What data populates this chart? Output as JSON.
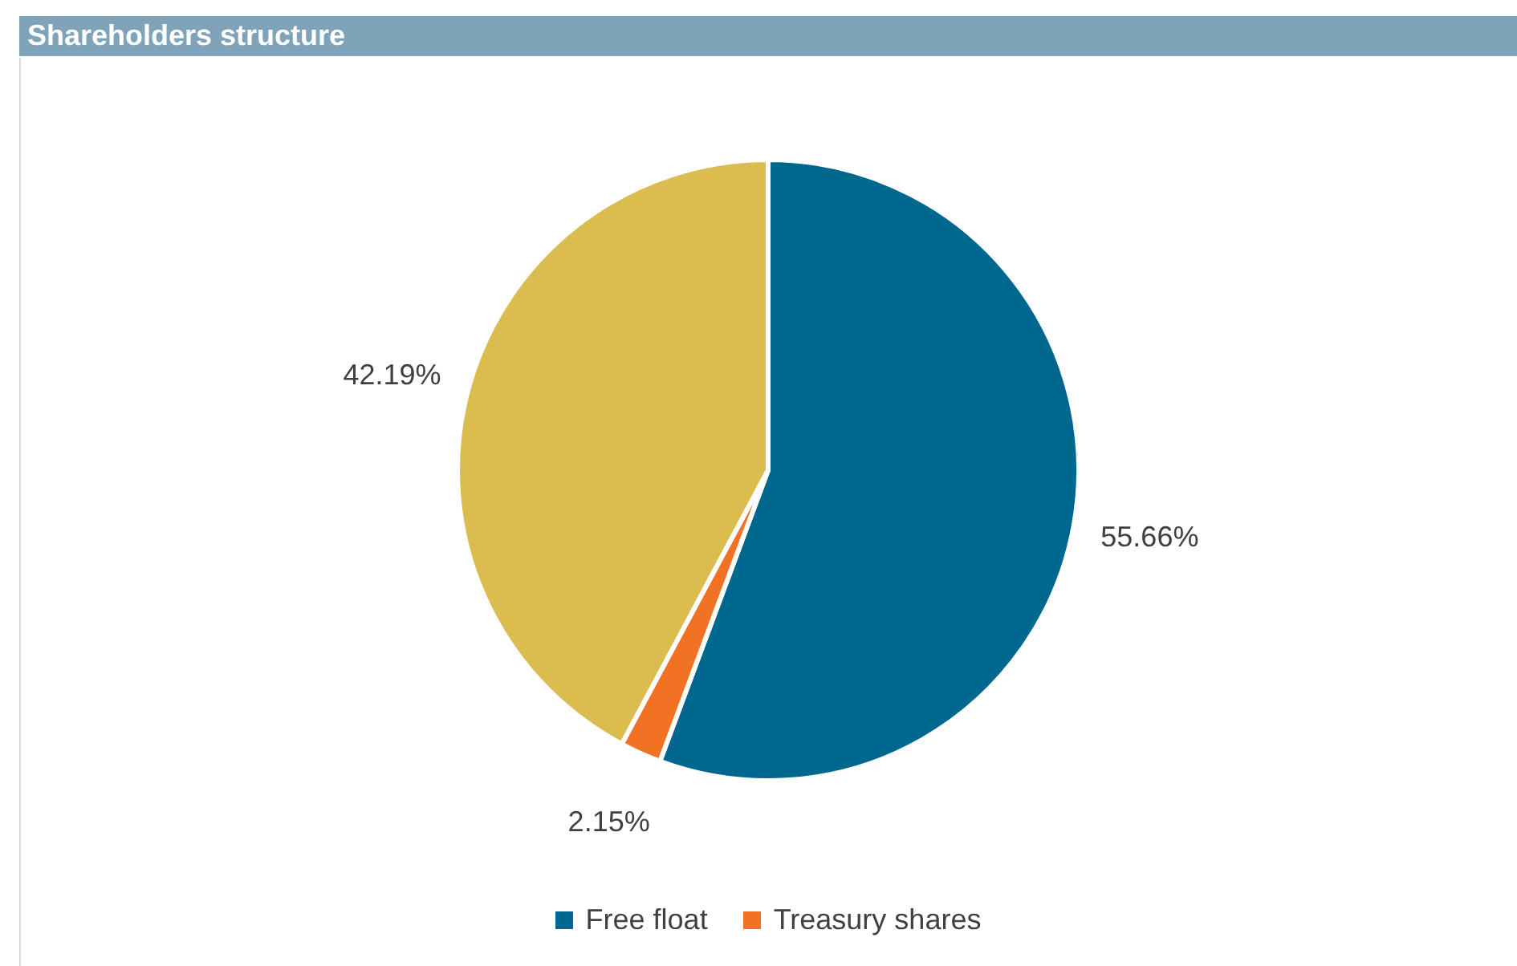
{
  "chart_data": {
    "type": "pie",
    "title": "Shareholders structure",
    "categories": [
      "Free float",
      "Treasury shares",
      null
    ],
    "values": [
      55.66,
      2.15,
      42.19
    ],
    "value_labels": [
      "55.66%",
      "2.15%",
      "42.19%"
    ],
    "colors": [
      "#00678f",
      "#f07222",
      "#dbbd4f"
    ],
    "legend": "bottom"
  }
}
